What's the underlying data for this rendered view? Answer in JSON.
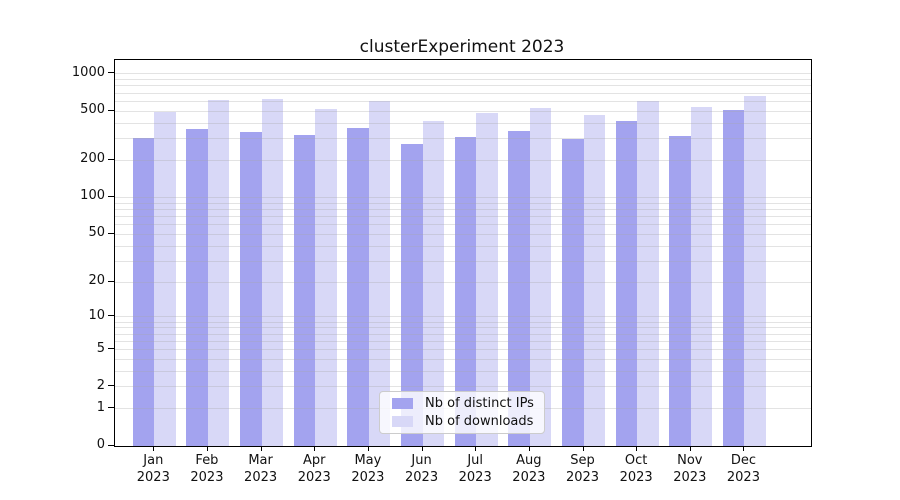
{
  "chart_data": {
    "type": "bar",
    "title": "clusterExperiment 2023",
    "categories": [
      "Jan 2023",
      "Feb 2023",
      "Mar 2023",
      "Apr 2023",
      "May 2023",
      "Jun 2023",
      "Jul 2023",
      "Aug 2023",
      "Sep 2023",
      "Oct 2023",
      "Nov 2023",
      "Dec 2023"
    ],
    "series": [
      {
        "name": "Nb of distinct IPs",
        "color": "#a3a3ef",
        "values": [
          301,
          362,
          338,
          322,
          364,
          274,
          310,
          349,
          300,
          416,
          318,
          510
        ]
      },
      {
        "name": "Nb of downloads",
        "color": "#d8d8f7",
        "values": [
          494,
          611,
          623,
          523,
          600,
          418,
          480,
          527,
          462,
          600,
          543,
          662
        ]
      }
    ],
    "y_axis": {
      "scale": "log1p",
      "ticks": [
        0,
        1,
        2,
        5,
        10,
        20,
        50,
        100,
        200,
        500,
        1000
      ],
      "minor_gridlines": [
        1,
        2,
        3,
        4,
        5,
        6,
        7,
        8,
        9,
        10,
        20,
        30,
        40,
        50,
        60,
        70,
        80,
        90,
        100,
        200,
        300,
        400,
        500,
        600,
        700,
        800,
        900,
        1000
      ],
      "top_value": 1295
    },
    "grid": true,
    "legend_position": "bottom-center"
  }
}
